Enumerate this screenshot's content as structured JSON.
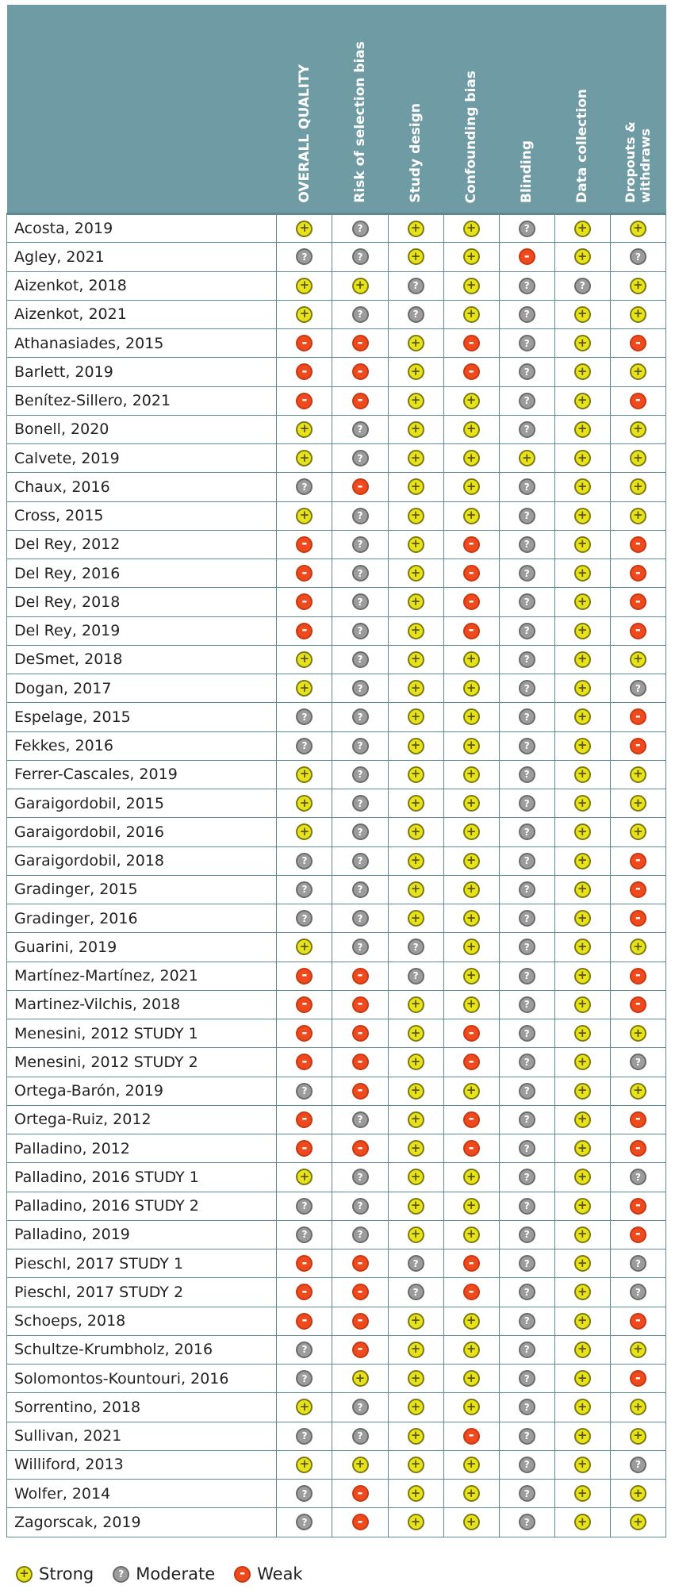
{
  "chart_data": {
    "type": "table",
    "columns": [
      "OVERALL QUALITY",
      "Risk of selection bias",
      "Study design",
      "Confounding bias",
      "Blinding",
      "Data collection",
      "Dropouts &\nwithdraws"
    ],
    "rating_scale": {
      "S": "Strong",
      "M": "Moderate",
      "W": "Weak"
    },
    "rows": [
      {
        "study": "Acosta, 2019",
        "ratings": [
          "S",
          "M",
          "S",
          "S",
          "M",
          "S",
          "S"
        ]
      },
      {
        "study": "Agley, 2021",
        "ratings": [
          "M",
          "M",
          "S",
          "S",
          "W",
          "S",
          "M"
        ]
      },
      {
        "study": "Aizenkot, 2018",
        "ratings": [
          "S",
          "S",
          "M",
          "S",
          "M",
          "M",
          "S"
        ]
      },
      {
        "study": "Aizenkot, 2021",
        "ratings": [
          "S",
          "M",
          "M",
          "S",
          "M",
          "S",
          "S"
        ]
      },
      {
        "study": "Athanasiades, 2015",
        "ratings": [
          "W",
          "W",
          "S",
          "W",
          "M",
          "S",
          "W"
        ]
      },
      {
        "study": "Barlett, 2019",
        "ratings": [
          "W",
          "W",
          "S",
          "W",
          "M",
          "S",
          "S"
        ]
      },
      {
        "study": "Benítez-Sillero, 2021",
        "ratings": [
          "W",
          "W",
          "S",
          "S",
          "M",
          "S",
          "W"
        ]
      },
      {
        "study": "Bonell, 2020",
        "ratings": [
          "S",
          "M",
          "S",
          "S",
          "M",
          "S",
          "S"
        ]
      },
      {
        "study": "Calvete, 2019",
        "ratings": [
          "S",
          "M",
          "S",
          "S",
          "S",
          "S",
          "S"
        ]
      },
      {
        "study": "Chaux, 2016",
        "ratings": [
          "M",
          "W",
          "S",
          "S",
          "M",
          "S",
          "S"
        ]
      },
      {
        "study": "Cross, 2015",
        "ratings": [
          "S",
          "M",
          "S",
          "S",
          "M",
          "S",
          "S"
        ]
      },
      {
        "study": "Del Rey, 2012",
        "ratings": [
          "W",
          "M",
          "S",
          "W",
          "M",
          "S",
          "W"
        ]
      },
      {
        "study": "Del Rey, 2016",
        "ratings": [
          "W",
          "M",
          "S",
          "W",
          "M",
          "S",
          "W"
        ]
      },
      {
        "study": "Del Rey, 2018",
        "ratings": [
          "W",
          "M",
          "S",
          "W",
          "M",
          "S",
          "W"
        ]
      },
      {
        "study": "Del Rey, 2019",
        "ratings": [
          "W",
          "M",
          "S",
          "W",
          "M",
          "S",
          "W"
        ]
      },
      {
        "study": "DeSmet, 2018",
        "ratings": [
          "S",
          "M",
          "S",
          "S",
          "M",
          "S",
          "S"
        ]
      },
      {
        "study": "Dogan, 2017",
        "ratings": [
          "S",
          "M",
          "S",
          "S",
          "M",
          "S",
          "M"
        ]
      },
      {
        "study": "Espelage, 2015",
        "ratings": [
          "M",
          "M",
          "S",
          "S",
          "M",
          "S",
          "W"
        ]
      },
      {
        "study": "Fekkes, 2016",
        "ratings": [
          "M",
          "M",
          "S",
          "S",
          "M",
          "S",
          "W"
        ]
      },
      {
        "study": "Ferrer-Cascales, 2019",
        "ratings": [
          "S",
          "M",
          "S",
          "S",
          "M",
          "S",
          "S"
        ]
      },
      {
        "study": "Garaigordobil, 2015",
        "ratings": [
          "S",
          "M",
          "S",
          "S",
          "M",
          "S",
          "S"
        ]
      },
      {
        "study": "Garaigordobil, 2016",
        "ratings": [
          "S",
          "M",
          "S",
          "S",
          "M",
          "S",
          "S"
        ]
      },
      {
        "study": "Garaigordobil, 2018",
        "ratings": [
          "M",
          "M",
          "S",
          "S",
          "M",
          "S",
          "W"
        ]
      },
      {
        "study": "Gradinger, 2015",
        "ratings": [
          "M",
          "M",
          "S",
          "S",
          "M",
          "S",
          "W"
        ]
      },
      {
        "study": "Gradinger, 2016",
        "ratings": [
          "M",
          "M",
          "S",
          "S",
          "M",
          "S",
          "W"
        ]
      },
      {
        "study": "Guarini, 2019",
        "ratings": [
          "S",
          "M",
          "M",
          "S",
          "M",
          "S",
          "S"
        ]
      },
      {
        "study": "Martínez-Martínez, 2021",
        "ratings": [
          "W",
          "W",
          "M",
          "S",
          "M",
          "S",
          "W"
        ]
      },
      {
        "study": "Martinez-Vilchis, 2018",
        "ratings": [
          "W",
          "W",
          "S",
          "S",
          "M",
          "S",
          "W"
        ]
      },
      {
        "study": "Menesini, 2012 STUDY 1",
        "ratings": [
          "W",
          "W",
          "S",
          "W",
          "M",
          "S",
          "S"
        ]
      },
      {
        "study": "Menesini, 2012 STUDY 2",
        "ratings": [
          "W",
          "W",
          "S",
          "W",
          "M",
          "S",
          "M"
        ]
      },
      {
        "study": "Ortega-Barón, 2019",
        "ratings": [
          "M",
          "W",
          "S",
          "S",
          "M",
          "S",
          "S"
        ]
      },
      {
        "study": "Ortega-Ruiz, 2012",
        "ratings": [
          "W",
          "M",
          "S",
          "W",
          "M",
          "S",
          "W"
        ]
      },
      {
        "study": "Palladino, 2012",
        "ratings": [
          "W",
          "W",
          "S",
          "W",
          "M",
          "S",
          "W"
        ]
      },
      {
        "study": "Palladino, 2016 STUDY 1",
        "ratings": [
          "S",
          "M",
          "S",
          "S",
          "M",
          "S",
          "M"
        ]
      },
      {
        "study": "Palladino, 2016 STUDY 2",
        "ratings": [
          "M",
          "M",
          "S",
          "S",
          "M",
          "S",
          "W"
        ]
      },
      {
        "study": "Palladino, 2019",
        "ratings": [
          "M",
          "M",
          "S",
          "S",
          "M",
          "S",
          "W"
        ]
      },
      {
        "study": "Pieschl, 2017 STUDY 1",
        "ratings": [
          "W",
          "W",
          "M",
          "W",
          "M",
          "S",
          "M"
        ]
      },
      {
        "study": "Pieschl, 2017 STUDY 2",
        "ratings": [
          "W",
          "W",
          "M",
          "W",
          "M",
          "S",
          "M"
        ]
      },
      {
        "study": "Schoeps, 2018",
        "ratings": [
          "W",
          "W",
          "S",
          "S",
          "M",
          "S",
          "W"
        ]
      },
      {
        "study": "Schultze-Krumbholz, 2016",
        "ratings": [
          "M",
          "W",
          "S",
          "S",
          "M",
          "S",
          "S"
        ]
      },
      {
        "study": "Solomontos-Kountouri, 2016",
        "ratings": [
          "M",
          "S",
          "S",
          "S",
          "M",
          "S",
          "W"
        ]
      },
      {
        "study": "Sorrentino, 2018",
        "ratings": [
          "S",
          "M",
          "S",
          "S",
          "M",
          "S",
          "S"
        ]
      },
      {
        "study": "Sullivan, 2021",
        "ratings": [
          "M",
          "M",
          "S",
          "W",
          "M",
          "S",
          "S"
        ]
      },
      {
        "study": "Williford, 2013",
        "ratings": [
          "S",
          "S",
          "S",
          "S",
          "M",
          "S",
          "M"
        ]
      },
      {
        "study": "Wolfer, 2014",
        "ratings": [
          "M",
          "W",
          "S",
          "S",
          "M",
          "S",
          "S"
        ]
      },
      {
        "study": "Zagorscak, 2019",
        "ratings": [
          "M",
          "W",
          "S",
          "S",
          "M",
          "S",
          "S"
        ]
      }
    ],
    "legend": [
      {
        "key": "S",
        "label": "Strong"
      },
      {
        "key": "M",
        "label": "Moderate"
      },
      {
        "key": "W",
        "label": "Weak"
      }
    ]
  },
  "colors": {
    "header_bg": "#6f9ba5",
    "strong": "#e8e21a",
    "moderate": "#9c9c9c",
    "weak": "#ee4a1e"
  },
  "icons": {
    "S": "plus-circle-icon",
    "M": "question-circle-icon",
    "W": "minus-circle-icon"
  }
}
